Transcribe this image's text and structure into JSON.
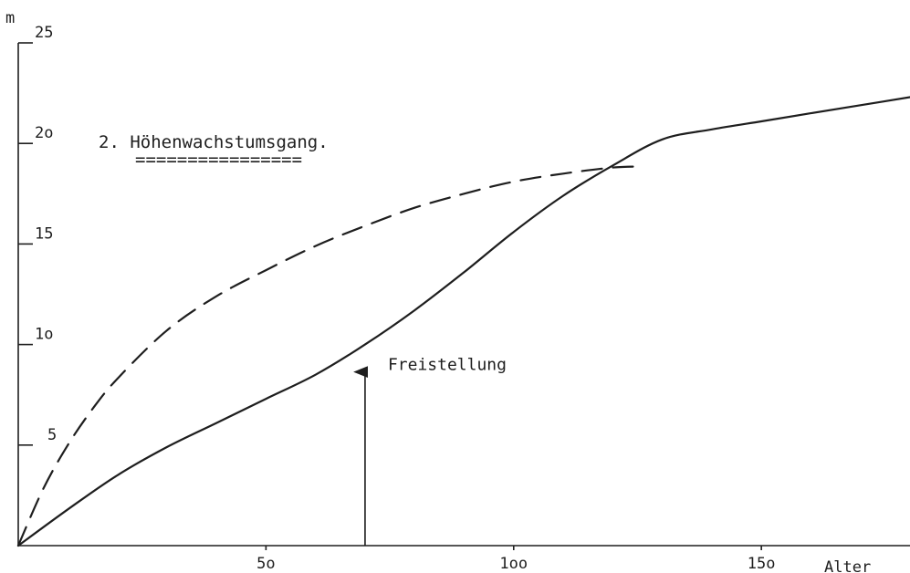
{
  "chart_data": {
    "type": "line",
    "title": "2. Höhenwachstumsgang.",
    "title_underline": "================",
    "xlabel": "Alter",
    "ylabel": "m",
    "xlim": [
      0,
      180
    ],
    "ylim": [
      0,
      25
    ],
    "x_ticks": [
      {
        "value": 50,
        "label": "5o"
      },
      {
        "value": 100,
        "label": "1oo"
      },
      {
        "value": 150,
        "label": "15o"
      }
    ],
    "y_ticks": [
      {
        "value": 5,
        "label": "5"
      },
      {
        "value": 10,
        "label": "1o"
      },
      {
        "value": 15,
        "label": "15"
      },
      {
        "value": 20,
        "label": "2o"
      },
      {
        "value": 25,
        "label": "25"
      }
    ],
    "grid": false,
    "series": [
      {
        "style": "solid",
        "x": [
          0,
          10,
          20,
          30,
          40,
          50,
          60,
          70,
          80,
          90,
          100,
          110,
          120,
          130,
          140,
          150,
          160,
          170,
          180
        ],
        "y": [
          0,
          1.8,
          3.5,
          4.9,
          6.1,
          7.3,
          8.5,
          10.0,
          11.7,
          13.6,
          15.6,
          17.4,
          18.9,
          20.2,
          20.7,
          21.1,
          21.5,
          21.9,
          22.3
        ]
      },
      {
        "style": "dashed",
        "x": [
          0,
          5,
          10,
          15,
          20,
          30,
          40,
          50,
          60,
          70,
          80,
          90,
          100,
          110,
          120,
          126
        ],
        "y": [
          0,
          2.8,
          5.0,
          6.8,
          8.3,
          10.7,
          12.4,
          13.7,
          14.9,
          15.9,
          16.8,
          17.5,
          18.1,
          18.5,
          18.8,
          18.85
        ]
      }
    ],
    "annotations": [
      {
        "text": "Freistellung",
        "arrow_x": 70,
        "arrow_y_from": 0,
        "arrow_y_to": 9
      }
    ]
  }
}
